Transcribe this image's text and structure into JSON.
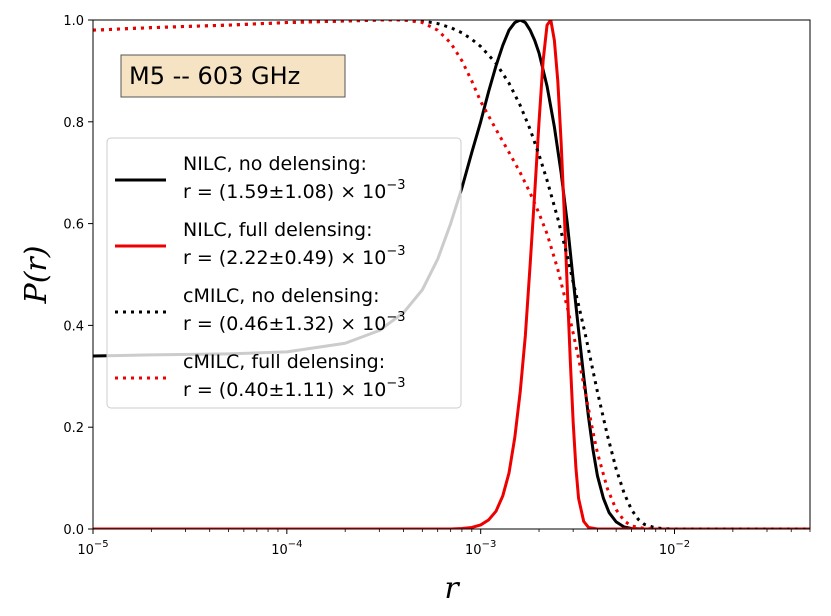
{
  "chart_data": {
    "type": "line",
    "title": "",
    "xlabel": "r",
    "ylabel": "P(r)",
    "xscale": "log",
    "xlim": [
      1e-05,
      0.05
    ],
    "ylim": [
      0.0,
      1.0
    ],
    "x_ticks": [
      {
        "value": 1e-05,
        "base": "10",
        "exp": "−5"
      },
      {
        "value": 0.0001,
        "base": "10",
        "exp": "−4"
      },
      {
        "value": 0.001,
        "base": "10",
        "exp": "−3"
      },
      {
        "value": 0.01,
        "base": "10",
        "exp": "−2"
      }
    ],
    "y_ticks": [
      "0.0",
      "0.2",
      "0.4",
      "0.6",
      "0.8",
      "1.0"
    ],
    "annotation": "M5 -- 603 GHz",
    "legend_position": "center-left",
    "series": [
      {
        "name": "NILC, no delensing",
        "label_line1": "NILC, no delensing:",
        "label_line2": "r = (1.59±1.08) × 10",
        "label_exp": "−3",
        "color": "#000000",
        "dash": "solid",
        "x": [
          1e-05,
          2e-05,
          5e-05,
          0.0001,
          0.0002,
          0.0003,
          0.0004,
          0.0005,
          0.0006,
          0.0007,
          0.0008,
          0.0009,
          0.001,
          0.0011,
          0.0012,
          0.0013,
          0.0014,
          0.0015,
          0.0016,
          0.0017,
          0.0018,
          0.0019,
          0.002,
          0.0022,
          0.0024,
          0.0026,
          0.0028,
          0.003,
          0.0032,
          0.0034,
          0.0036,
          0.0038,
          0.004,
          0.0043,
          0.0046,
          0.005,
          0.0055,
          0.006,
          0.007,
          0.008,
          0.01,
          0.02,
          0.05
        ],
        "values": [
          0.34,
          0.342,
          0.344,
          0.348,
          0.365,
          0.39,
          0.425,
          0.47,
          0.53,
          0.6,
          0.67,
          0.74,
          0.8,
          0.86,
          0.91,
          0.95,
          0.98,
          0.995,
          1.0,
          0.995,
          0.98,
          0.96,
          0.935,
          0.87,
          0.79,
          0.7,
          0.6,
          0.49,
          0.39,
          0.3,
          0.22,
          0.155,
          0.105,
          0.06,
          0.032,
          0.014,
          0.004,
          0.001,
          0.0,
          0.0,
          0.0,
          0.0,
          0.0
        ]
      },
      {
        "name": "NILC, full delensing",
        "label_line1": "NILC, full delensing:",
        "label_line2": "r = (2.22±0.49) × 10",
        "label_exp": "−3",
        "color": "#ee0000",
        "dash": "solid",
        "x": [
          1e-05,
          0.0001,
          0.0003,
          0.0005,
          0.0007,
          0.0008,
          0.0009,
          0.001,
          0.0011,
          0.0012,
          0.0013,
          0.0014,
          0.0015,
          0.0016,
          0.0017,
          0.0018,
          0.0019,
          0.002,
          0.0021,
          0.0022,
          0.0023,
          0.0024,
          0.0025,
          0.0026,
          0.0027,
          0.0028,
          0.0029,
          0.003,
          0.0031,
          0.0032,
          0.0034,
          0.0036,
          0.004,
          0.005,
          0.01,
          0.05
        ],
        "values": [
          0.0,
          0.0,
          0.0,
          0.0,
          0.0,
          0.001,
          0.003,
          0.008,
          0.018,
          0.035,
          0.065,
          0.11,
          0.18,
          0.27,
          0.38,
          0.52,
          0.66,
          0.8,
          0.92,
          0.99,
          1.0,
          0.96,
          0.88,
          0.76,
          0.62,
          0.47,
          0.33,
          0.21,
          0.12,
          0.06,
          0.015,
          0.003,
          0.0,
          0.0,
          0.0,
          0.0
        ]
      },
      {
        "name": "cMILC, no delensing",
        "label_line1": "cMILC, no delensing:",
        "label_line2": "r = (0.46±1.32) × 10",
        "label_exp": "−3",
        "color": "#000000",
        "dash": "dotted",
        "x": [
          1e-05,
          2e-05,
          5e-05,
          0.0001,
          0.0002,
          0.0003,
          0.0004,
          0.0005,
          0.0006,
          0.0007,
          0.0008,
          0.0009,
          0.001,
          0.0012,
          0.0014,
          0.0016,
          0.0018,
          0.002,
          0.0022,
          0.0025,
          0.0028,
          0.003,
          0.0032,
          0.0035,
          0.0038,
          0.004,
          0.0045,
          0.005,
          0.0055,
          0.006,
          0.0065,
          0.007,
          0.008,
          0.009,
          0.01,
          0.02,
          0.05
        ],
        "values": [
          0.98,
          0.985,
          0.99,
          0.995,
          0.998,
          1.0,
          1.0,
          0.998,
          0.993,
          0.985,
          0.975,
          0.962,
          0.948,
          0.915,
          0.876,
          0.832,
          0.785,
          0.735,
          0.685,
          0.61,
          0.535,
          0.485,
          0.44,
          0.375,
          0.31,
          0.27,
          0.185,
          0.118,
          0.07,
          0.038,
          0.019,
          0.009,
          0.002,
          0.0005,
          0.0,
          0.0,
          0.0
        ]
      },
      {
        "name": "cMILC, full delensing",
        "label_line1": "cMILC, full delensing:",
        "label_line2": "r = (0.40±1.11) × 10",
        "label_exp": "−3",
        "color": "#ee0000",
        "dash": "dotted",
        "x": [
          1e-05,
          2e-05,
          5e-05,
          0.0001,
          0.0002,
          0.0003,
          0.0004,
          0.0005,
          0.0006,
          0.0007,
          0.0008,
          0.0009,
          0.001,
          0.0012,
          0.0014,
          0.0016,
          0.0018,
          0.002,
          0.0022,
          0.0025,
          0.0028,
          0.003,
          0.0032,
          0.0035,
          0.0038,
          0.004,
          0.0045,
          0.005,
          0.0055,
          0.006,
          0.007,
          0.008,
          0.01,
          0.02,
          0.05
        ],
        "values": [
          0.98,
          0.985,
          0.99,
          0.995,
          0.998,
          1.0,
          1.0,
          0.995,
          0.98,
          0.955,
          0.92,
          0.88,
          0.84,
          0.785,
          0.74,
          0.7,
          0.66,
          0.62,
          0.58,
          0.51,
          0.435,
          0.385,
          0.335,
          0.26,
          0.19,
          0.15,
          0.08,
          0.038,
          0.016,
          0.006,
          0.001,
          0.0,
          0.0,
          0.0,
          0.0
        ]
      }
    ]
  }
}
